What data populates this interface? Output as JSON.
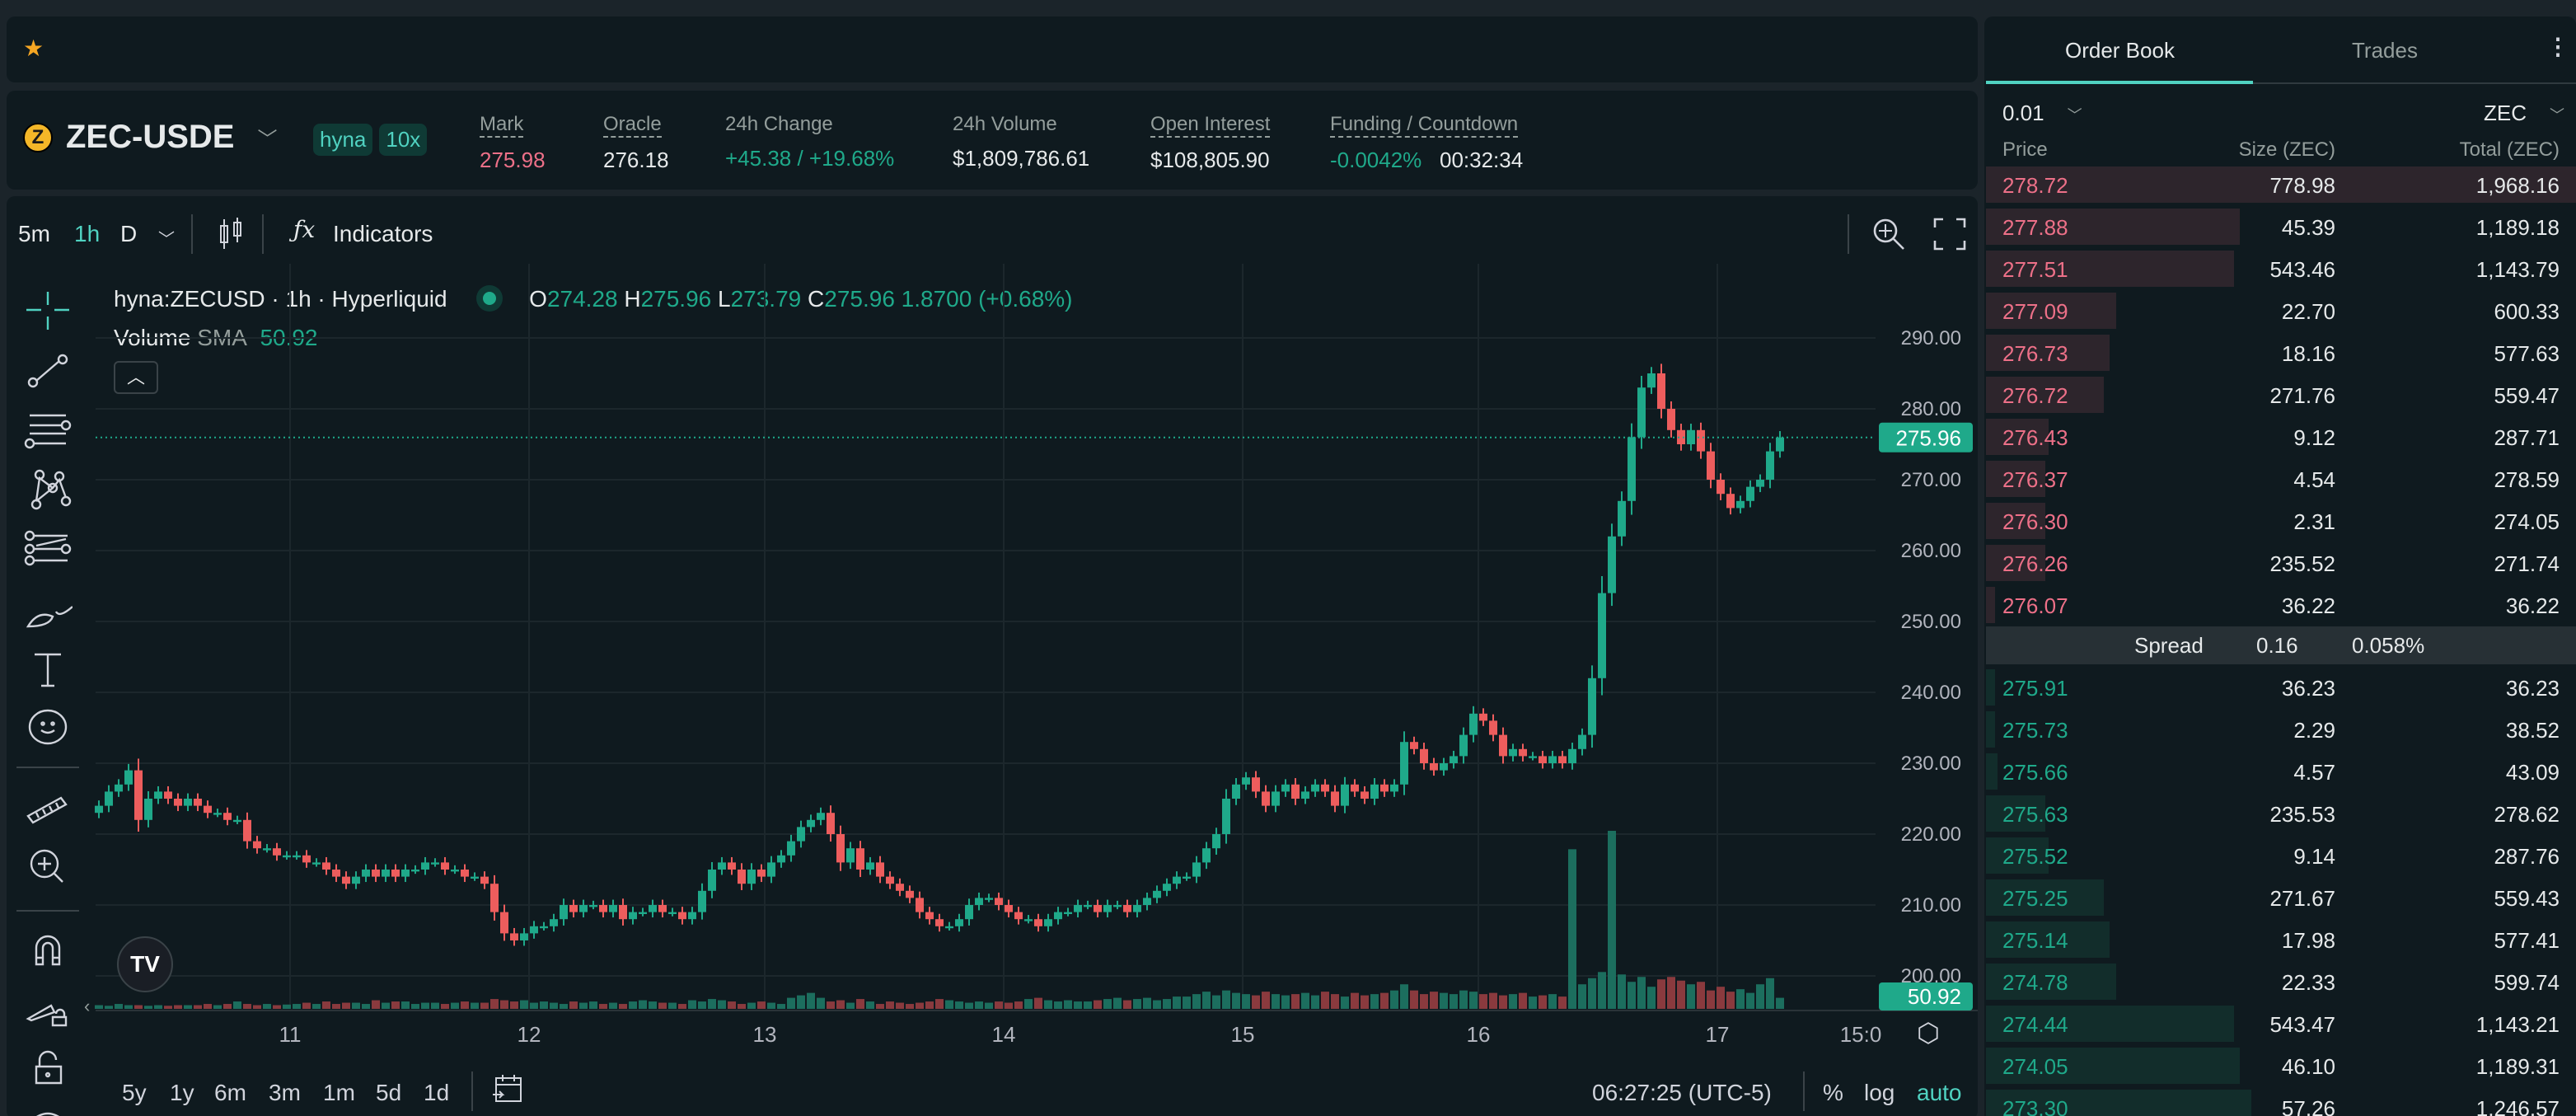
{
  "topbar": {
    "favorite_icon": "star-icon"
  },
  "ticker": {
    "symbol": "ZEC-USDE",
    "coin_icon": "zcash-icon",
    "badges": [
      "hyna",
      "10x"
    ],
    "stats": [
      {
        "label": "Mark",
        "value": "275.98",
        "color": "#ed7088"
      },
      {
        "label": "Oracle",
        "value": "276.18"
      },
      {
        "label": "24h Change",
        "value": "+45.38 / +19.68%",
        "color": "#1fa98a"
      },
      {
        "label": "24h Volume",
        "value": "$1,809,786.61"
      },
      {
        "label": "Open Interest",
        "value": "$108,805.90"
      },
      {
        "label": "Funding / Countdown",
        "value": "-0.0042%",
        "value2": "00:32:34",
        "color": "#1fa98a"
      }
    ]
  },
  "chart_toolbar": {
    "intervals": [
      "5m",
      "1h",
      "D"
    ],
    "active_interval": "1h",
    "indicators_label": "Indicators"
  },
  "legend": {
    "title": "hyna:ZECUSD · 1h · Hyperliquid",
    "o_label": "O",
    "o": "274.28",
    "h_label": "H",
    "h": "275.96",
    "l_label": "L",
    "l": "273.79",
    "c_label": "C",
    "c": "275.96",
    "change": "1.8700 (+0.68%)",
    "volume_label": "Volume",
    "sma_label": "SMA",
    "sma_value": "50.92"
  },
  "bottom": {
    "ranges": [
      "5y",
      "1y",
      "6m",
      "3m",
      "1m",
      "5d",
      "1d"
    ],
    "time": "06:27:25 (UTC-5)",
    "percent": "%",
    "log": "log",
    "auto": "auto"
  },
  "colors": {
    "up": "#1fa98a",
    "down": "#ed5d5d",
    "accent": "#50d2c1",
    "bg": "#0f1a1f"
  },
  "chart_data": {
    "type": "candlestick",
    "interval": "1h",
    "y_ticks": [
      "290.00",
      "280.00",
      "270.00",
      "260.00",
      "250.00",
      "240.00",
      "230.00",
      "220.00",
      "210.00",
      "200.00"
    ],
    "ylim": [
      197,
      293
    ],
    "x_ticks": [
      "11",
      "12",
      "13",
      "14",
      "15",
      "16",
      "17",
      "15:0"
    ],
    "last_price": "275.96",
    "last_volume_sma": "50.92",
    "close": [
      224,
      226,
      227,
      229,
      222,
      225,
      226,
      225,
      224,
      225,
      224,
      223,
      223,
      222,
      222,
      219,
      218,
      218,
      217,
      217,
      217,
      216,
      216,
      215,
      214,
      213,
      214,
      215,
      214,
      215,
      214,
      215,
      215,
      216,
      216,
      215,
      215,
      214,
      214,
      213,
      209,
      206,
      205,
      206,
      207,
      207,
      208,
      210,
      209,
      210,
      210,
      209,
      210,
      208,
      209,
      209,
      210,
      209,
      209,
      208,
      209,
      212,
      215,
      216,
      215,
      213,
      215,
      214,
      216,
      217,
      219,
      221,
      222,
      223,
      220,
      216,
      218,
      215,
      216,
      214,
      213,
      212,
      211,
      209,
      208,
      207,
      207,
      208,
      210,
      211,
      211,
      210,
      209,
      208,
      208,
      207,
      208,
      209,
      209,
      210,
      210,
      209,
      210,
      210,
      209,
      210,
      211,
      212,
      213,
      214,
      214,
      216,
      218,
      220,
      225,
      227,
      228,
      226,
      224,
      226,
      227,
      225,
      226,
      227,
      226,
      224,
      227,
      226,
      225,
      227,
      226,
      227,
      233,
      232,
      230,
      229,
      230,
      231,
      234,
      237,
      236,
      234,
      231,
      232,
      231,
      231,
      230,
      231,
      230,
      232,
      234,
      242,
      254,
      262,
      267,
      276,
      283,
      285,
      280,
      277,
      275,
      277,
      274,
      270,
      268,
      266,
      267,
      269,
      270,
      274,
      275.96
    ],
    "volume": [
      30,
      25,
      40,
      30,
      30,
      25,
      30,
      25,
      30,
      30,
      30,
      40,
      30,
      40,
      60,
      40,
      30,
      40,
      30,
      35,
      40,
      50,
      40,
      60,
      40,
      50,
      50,
      40,
      70,
      50,
      60,
      60,
      40,
      50,
      50,
      40,
      50,
      60,
      50,
      50,
      80,
      70,
      60,
      70,
      50,
      60,
      50,
      40,
      60,
      50,
      60,
      40,
      50,
      40,
      60,
      70,
      60,
      50,
      50,
      40,
      70,
      60,
      80,
      70,
      60,
      40,
      50,
      60,
      50,
      40,
      90,
      110,
      130,
      90,
      60,
      70,
      50,
      80,
      60,
      40,
      60,
      50,
      40,
      50,
      60,
      80,
      70,
      60,
      50,
      60,
      50,
      60,
      50,
      60,
      80,
      90,
      70,
      60,
      70,
      60,
      60,
      70,
      80,
      90,
      70,
      80,
      90,
      70,
      80,
      100,
      100,
      120,
      140,
      110,
      150,
      130,
      120,
      110,
      140,
      120,
      110,
      120,
      130,
      110,
      140,
      120,
      100,
      130,
      110,
      120,
      130,
      150,
      200,
      150,
      120,
      140,
      130,
      120,
      150,
      140,
      120,
      130,
      110,
      120,
      130,
      100,
      110,
      120,
      100,
      1300,
      200,
      250,
      300,
      1450,
      280,
      220,
      260,
      180,
      240,
      260,
      230,
      200,
      220,
      150,
      180,
      140,
      160,
      130,
      200,
      250,
      90
    ]
  },
  "orderbook": {
    "tabs": [
      "Order Book",
      "Trades"
    ],
    "active_tab": "Order Book",
    "tick": "0.01",
    "unit": "ZEC",
    "headers": [
      "Price",
      "Size (ZEC)",
      "Total (ZEC)"
    ],
    "asks": [
      {
        "price": "278.72",
        "size": "778.98",
        "total": "1,968.16",
        "depth": 1.0
      },
      {
        "price": "277.88",
        "size": "45.39",
        "total": "1,189.18",
        "depth": 0.43
      },
      {
        "price": "277.51",
        "size": "543.46",
        "total": "1,143.79",
        "depth": 0.42
      },
      {
        "price": "277.09",
        "size": "22.70",
        "total": "600.33",
        "depth": 0.22
      },
      {
        "price": "276.73",
        "size": "18.16",
        "total": "577.63",
        "depth": 0.21
      },
      {
        "price": "276.72",
        "size": "271.76",
        "total": "559.47",
        "depth": 0.2
      },
      {
        "price": "276.43",
        "size": "9.12",
        "total": "287.71",
        "depth": 0.106
      },
      {
        "price": "276.37",
        "size": "4.54",
        "total": "278.59",
        "depth": 0.1
      },
      {
        "price": "276.30",
        "size": "2.31",
        "total": "274.05",
        "depth": 0.1
      },
      {
        "price": "276.26",
        "size": "235.52",
        "total": "271.74",
        "depth": 0.1
      },
      {
        "price": "276.07",
        "size": "36.22",
        "total": "36.22",
        "depth": 0.015
      }
    ],
    "spread": {
      "label": "Spread",
      "value": "0.16",
      "percent": "0.058%"
    },
    "bids": [
      {
        "price": "275.91",
        "size": "36.23",
        "total": "36.23",
        "depth": 0.015
      },
      {
        "price": "275.73",
        "size": "2.29",
        "total": "38.52",
        "depth": 0.015
      },
      {
        "price": "275.66",
        "size": "4.57",
        "total": "43.09",
        "depth": 0.02
      },
      {
        "price": "275.63",
        "size": "235.53",
        "total": "278.62",
        "depth": 0.1
      },
      {
        "price": "275.52",
        "size": "9.14",
        "total": "287.76",
        "depth": 0.106
      },
      {
        "price": "275.25",
        "size": "271.67",
        "total": "559.43",
        "depth": 0.2
      },
      {
        "price": "275.14",
        "size": "17.98",
        "total": "577.41",
        "depth": 0.21
      },
      {
        "price": "274.78",
        "size": "22.33",
        "total": "599.74",
        "depth": 0.22
      },
      {
        "price": "274.44",
        "size": "543.47",
        "total": "1,143.21",
        "depth": 0.42
      },
      {
        "price": "274.05",
        "size": "46.10",
        "total": "1,189.31",
        "depth": 0.43
      },
      {
        "price": "273.30",
        "size": "57.26",
        "total": "1,246.57",
        "depth": 0.45
      }
    ]
  }
}
